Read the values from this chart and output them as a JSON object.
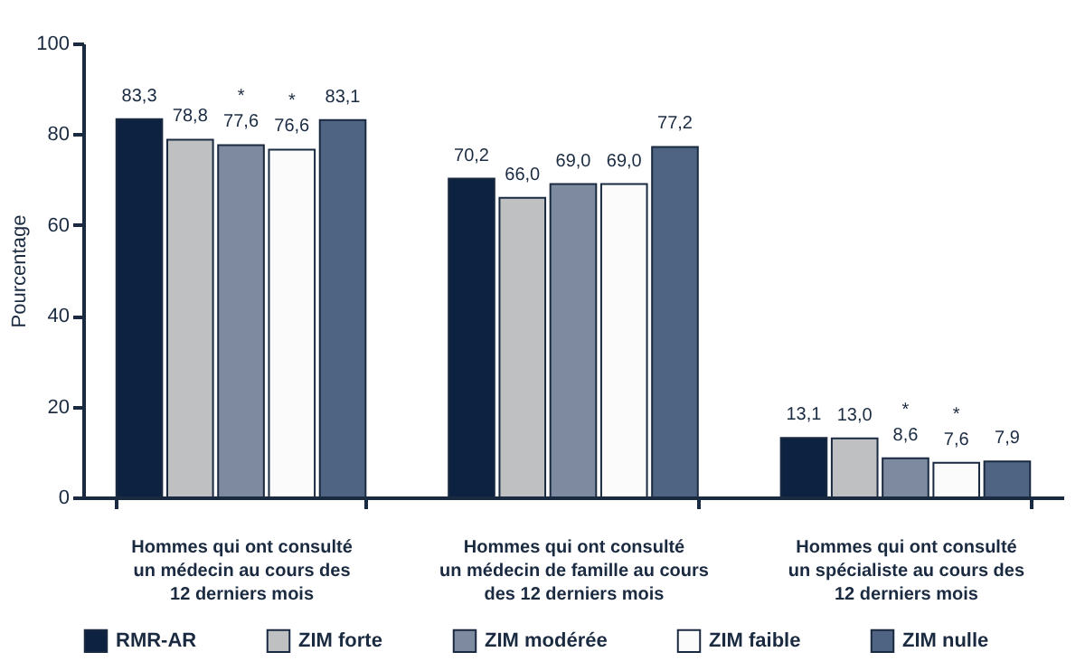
{
  "chart_data": {
    "type": "bar",
    "ylabel": "Pourcentage",
    "categories": [
      "Hommes qui ont consulté\nun médecin au cours des\n12 derniers mois",
      "Hommes qui ont consulté\nun médecin de famille au cours\ndes 12 derniers mois",
      "Hommes qui ont consulté\nun spécialiste au cours des\n12 derniers mois"
    ],
    "series": [
      {
        "name": "RMR-AR",
        "color": "#0d2240",
        "values": [
          83.3,
          70.2,
          13.1
        ],
        "value_labels": [
          "83,3",
          "70,2",
          "13,1"
        ]
      },
      {
        "name": "ZIM forte",
        "color": "#bfc0c2",
        "values": [
          78.8,
          66.0,
          13.0
        ],
        "value_labels": [
          "78,8",
          "66,0",
          "13,0"
        ]
      },
      {
        "name": "ZIM modérée",
        "color": "#7d8aa0",
        "values": [
          77.6,
          69.0,
          8.6
        ],
        "value_labels": [
          "*\n77,6",
          "69,0",
          "*\n8,6"
        ]
      },
      {
        "name": "ZIM faible",
        "color": "#fbfbfb",
        "values": [
          76.6,
          69.0,
          7.6
        ],
        "value_labels": [
          "*\n76,6",
          "69,0",
          "*\n7,6"
        ]
      },
      {
        "name": "ZIM nulle",
        "color": "#4e6482",
        "values": [
          83.1,
          77.2,
          7.9
        ],
        "value_labels": [
          "83,1",
          "77,2",
          "7,9"
        ]
      }
    ],
    "ylim": [
      0,
      100
    ],
    "yticks": [
      0,
      20,
      40,
      60,
      80,
      100
    ],
    "grid": false,
    "legend": "bottom"
  }
}
